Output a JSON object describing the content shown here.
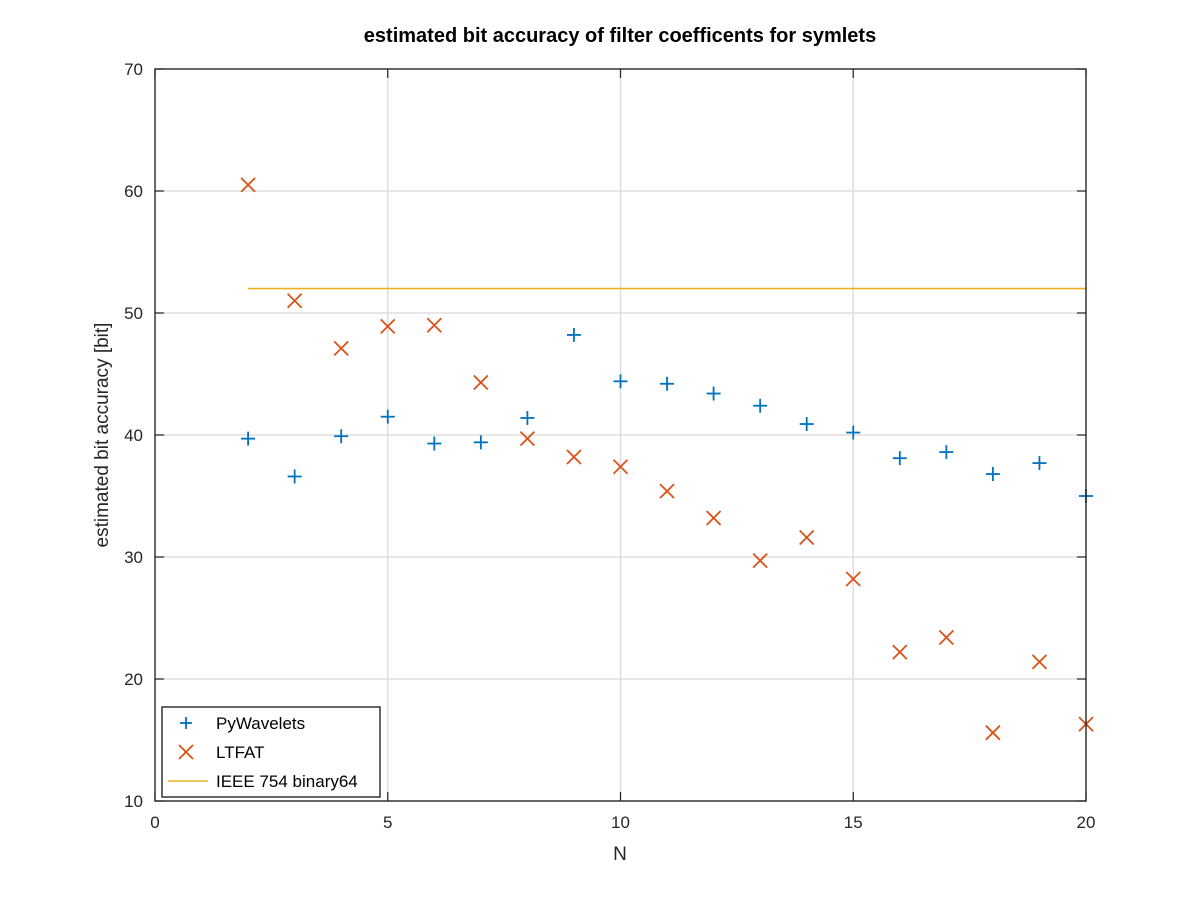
{
  "chart_data": {
    "type": "scatter",
    "title": "estimated bit accuracy of filter coefficents for symlets",
    "xlabel": "N",
    "ylabel": "estimated bit accuracy [bit]",
    "xlim": [
      0,
      20
    ],
    "ylim": [
      10,
      70
    ],
    "xticks": [
      "0",
      "5",
      "10",
      "15",
      "20"
    ],
    "yticks": [
      "10",
      "20",
      "30",
      "40",
      "50",
      "60",
      "70"
    ],
    "grid": "vertical-and-horizontal",
    "legend_position": "bottom-left",
    "series": [
      {
        "name": "PyWavelets",
        "marker": "plus",
        "color": "#0072BD",
        "x": [
          2,
          3,
          4,
          5,
          6,
          7,
          8,
          9,
          10,
          11,
          12,
          13,
          14,
          15,
          16,
          17,
          18,
          19,
          20
        ],
        "y": [
          39.7,
          36.6,
          39.9,
          41.5,
          39.3,
          39.4,
          41.4,
          48.2,
          44.4,
          44.2,
          43.4,
          42.4,
          40.9,
          40.2,
          38.1,
          38.6,
          36.8,
          37.7,
          35.0
        ]
      },
      {
        "name": "LTFAT",
        "marker": "x",
        "color": "#D95319",
        "x": [
          2,
          3,
          4,
          5,
          6,
          7,
          8,
          9,
          10,
          11,
          12,
          13,
          14,
          15,
          16,
          17,
          18,
          19,
          20
        ],
        "y": [
          60.5,
          51.0,
          47.1,
          48.9,
          49.0,
          44.3,
          39.7,
          38.2,
          37.4,
          35.4,
          33.2,
          29.7,
          31.6,
          28.2,
          22.2,
          23.4,
          15.6,
          21.4,
          16.3
        ]
      },
      {
        "name": "IEEE 754 binary64",
        "marker": "line",
        "color": "#EDB120",
        "x": [
          2,
          20
        ],
        "y": [
          52,
          52
        ]
      }
    ]
  }
}
